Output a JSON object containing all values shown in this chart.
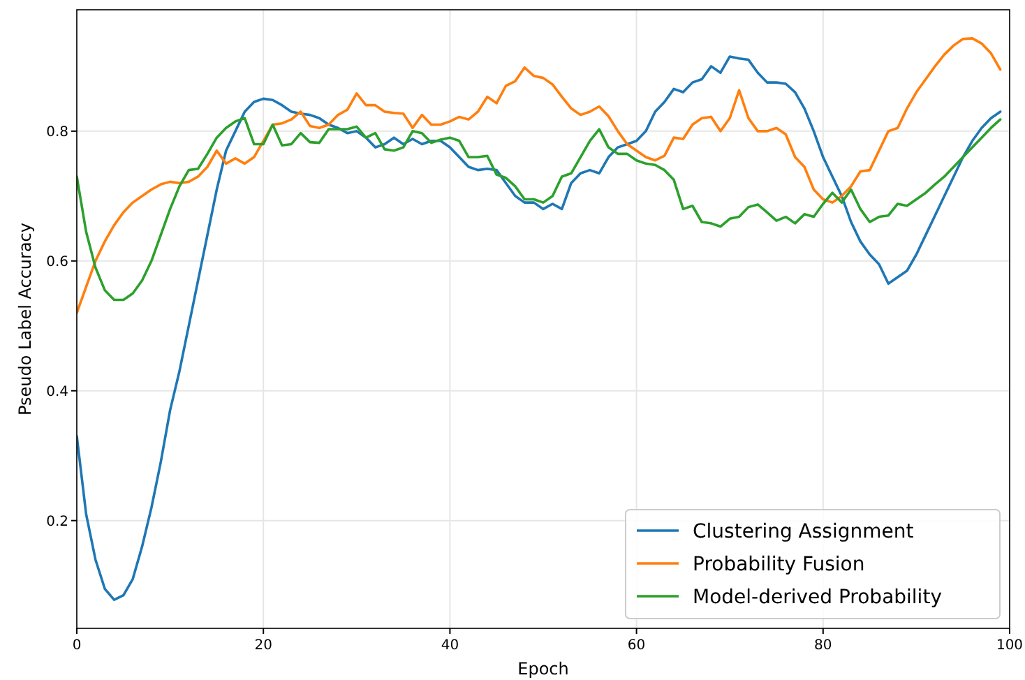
{
  "chart_data": {
    "type": "line",
    "xlabel": "Epoch",
    "ylabel": "Pseudo Label Accuracy",
    "x": [
      0,
      1,
      2,
      3,
      4,
      5,
      6,
      7,
      8,
      9,
      10,
      11,
      12,
      13,
      14,
      15,
      16,
      17,
      18,
      19,
      20,
      21,
      22,
      23,
      24,
      25,
      26,
      27,
      28,
      29,
      30,
      31,
      32,
      33,
      34,
      35,
      36,
      37,
      38,
      39,
      40,
      41,
      42,
      43,
      44,
      45,
      46,
      47,
      48,
      49,
      50,
      51,
      52,
      53,
      54,
      55,
      56,
      57,
      58,
      59,
      60,
      61,
      62,
      63,
      64,
      65,
      66,
      67,
      68,
      69,
      70,
      71,
      72,
      73,
      74,
      75,
      76,
      77,
      78,
      79,
      80,
      81,
      82,
      83,
      84,
      85,
      86,
      87,
      88,
      89,
      90,
      91,
      92,
      93,
      94,
      95,
      96,
      97,
      98,
      99
    ],
    "series": [
      {
        "name": "Clustering Assignment",
        "color": "#1f77b4",
        "values": [
          0.33,
          0.21,
          0.14,
          0.095,
          0.078,
          0.085,
          0.11,
          0.16,
          0.22,
          0.29,
          0.37,
          0.43,
          0.5,
          0.57,
          0.64,
          0.71,
          0.77,
          0.8,
          0.83,
          0.845,
          0.85,
          0.848,
          0.84,
          0.83,
          0.827,
          0.825,
          0.82,
          0.81,
          0.805,
          0.797,
          0.8,
          0.79,
          0.775,
          0.78,
          0.79,
          0.78,
          0.788,
          0.78,
          0.785,
          0.785,
          0.775,
          0.76,
          0.745,
          0.74,
          0.742,
          0.74,
          0.72,
          0.7,
          0.69,
          0.69,
          0.68,
          0.688,
          0.68,
          0.72,
          0.735,
          0.74,
          0.735,
          0.76,
          0.775,
          0.78,
          0.785,
          0.8,
          0.83,
          0.845,
          0.865,
          0.86,
          0.875,
          0.88,
          0.9,
          0.89,
          0.915,
          0.912,
          0.91,
          0.89,
          0.875,
          0.875,
          0.873,
          0.86,
          0.835,
          0.8,
          0.76,
          0.73,
          0.7,
          0.66,
          0.63,
          0.61,
          0.595,
          0.565,
          0.575,
          0.585,
          0.61,
          0.64,
          0.67,
          0.7,
          0.73,
          0.76,
          0.785,
          0.805,
          0.82,
          0.83
        ]
      },
      {
        "name": "Probability Fusion",
        "color": "#ff7f0e",
        "values": [
          0.52,
          0.56,
          0.6,
          0.63,
          0.655,
          0.675,
          0.69,
          0.7,
          0.71,
          0.718,
          0.722,
          0.72,
          0.722,
          0.73,
          0.745,
          0.77,
          0.75,
          0.758,
          0.75,
          0.76,
          0.785,
          0.81,
          0.812,
          0.818,
          0.83,
          0.808,
          0.805,
          0.81,
          0.825,
          0.833,
          0.858,
          0.84,
          0.84,
          0.83,
          0.828,
          0.827,
          0.805,
          0.825,
          0.81,
          0.81,
          0.815,
          0.822,
          0.818,
          0.83,
          0.853,
          0.843,
          0.87,
          0.877,
          0.898,
          0.885,
          0.882,
          0.872,
          0.853,
          0.835,
          0.825,
          0.83,
          0.838,
          0.823,
          0.8,
          0.78,
          0.77,
          0.76,
          0.755,
          0.762,
          0.79,
          0.788,
          0.81,
          0.82,
          0.822,
          0.8,
          0.82,
          0.863,
          0.82,
          0.8,
          0.8,
          0.805,
          0.795,
          0.76,
          0.745,
          0.71,
          0.695,
          0.69,
          0.7,
          0.715,
          0.738,
          0.74,
          0.77,
          0.8,
          0.805,
          0.835,
          0.86,
          0.88,
          0.9,
          0.918,
          0.932,
          0.942,
          0.943,
          0.935,
          0.92,
          0.895
        ]
      },
      {
        "name": "Model-derived Probability",
        "color": "#2ca02c",
        "values": [
          0.73,
          0.645,
          0.59,
          0.555,
          0.54,
          0.54,
          0.55,
          0.57,
          0.6,
          0.64,
          0.68,
          0.715,
          0.74,
          0.742,
          0.765,
          0.79,
          0.805,
          0.815,
          0.82,
          0.78,
          0.78,
          0.81,
          0.778,
          0.78,
          0.797,
          0.783,
          0.782,
          0.803,
          0.803,
          0.803,
          0.807,
          0.79,
          0.797,
          0.772,
          0.77,
          0.775,
          0.8,
          0.797,
          0.782,
          0.787,
          0.79,
          0.785,
          0.76,
          0.76,
          0.762,
          0.733,
          0.728,
          0.715,
          0.695,
          0.695,
          0.69,
          0.7,
          0.73,
          0.735,
          0.76,
          0.785,
          0.803,
          0.775,
          0.765,
          0.765,
          0.755,
          0.75,
          0.748,
          0.74,
          0.725,
          0.68,
          0.685,
          0.66,
          0.658,
          0.653,
          0.665,
          0.668,
          0.683,
          0.687,
          0.675,
          0.662,
          0.668,
          0.658,
          0.672,
          0.668,
          0.688,
          0.705,
          0.69,
          0.71,
          0.68,
          0.66,
          0.668,
          0.67,
          0.688,
          0.685,
          0.695,
          0.705,
          0.718,
          0.73,
          0.745,
          0.76,
          0.775,
          0.79,
          0.805,
          0.818
        ]
      }
    ],
    "xlim": [
      0,
      100
    ],
    "ylim": [
      0.034,
      0.987
    ],
    "xticks": [
      0,
      20,
      40,
      60,
      80,
      100
    ],
    "yticks": [
      0.2,
      0.4,
      0.6,
      0.8
    ],
    "grid": true,
    "legend": "bottom right"
  }
}
